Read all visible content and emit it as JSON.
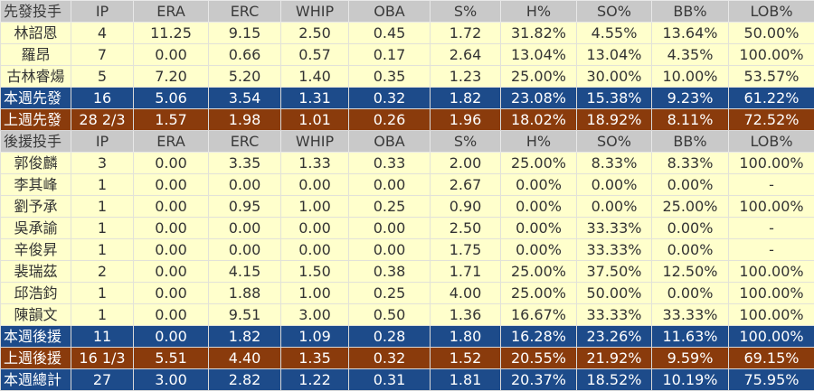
{
  "columns": [
    "IP",
    "ERA",
    "ERC",
    "WHIP",
    "OBA",
    "S%",
    "H%",
    "SO%",
    "BB%",
    "LOB%"
  ],
  "colors": {
    "header": "#c9c9c9",
    "data": "#ffffcc",
    "this_week": "#1d4b8a",
    "last_week": "#8a3b0c"
  },
  "rows": [
    {
      "type": "hdr",
      "cells": [
        "先發投手",
        "IP",
        "ERA",
        "ERC",
        "WHIP",
        "OBA",
        "S%",
        "H%",
        "SO%",
        "BB%",
        "LOB%"
      ]
    },
    {
      "type": "data",
      "cells": [
        "林詔恩",
        "4",
        "11.25",
        "9.15",
        "2.50",
        "0.45",
        "1.72",
        "31.82%",
        "4.55%",
        "13.64%",
        "50.00%"
      ]
    },
    {
      "type": "data",
      "cells": [
        "羅昂",
        "7",
        "0.00",
        "0.66",
        "0.57",
        "0.17",
        "2.64",
        "13.04%",
        "13.04%",
        "4.35%",
        "100.00%"
      ]
    },
    {
      "type": "data",
      "cells": [
        "古林睿煬",
        "5",
        "7.20",
        "5.20",
        "1.40",
        "0.35",
        "1.23",
        "25.00%",
        "30.00%",
        "10.00%",
        "53.57%"
      ]
    },
    {
      "type": "blue",
      "cells": [
        "本週先發",
        "16",
        "5.06",
        "3.54",
        "1.31",
        "0.32",
        "1.82",
        "23.08%",
        "15.38%",
        "9.23%",
        "61.22%"
      ]
    },
    {
      "type": "brown",
      "cells": [
        "上週先發",
        "28 2/3",
        "1.57",
        "1.98",
        "1.01",
        "0.26",
        "1.96",
        "18.02%",
        "18.92%",
        "8.11%",
        "72.52%"
      ]
    },
    {
      "type": "hdr",
      "cells": [
        "後援投手",
        "IP",
        "ERA",
        "ERC",
        "WHIP",
        "OBA",
        "S%",
        "H%",
        "SO%",
        "BB%",
        "LOB%"
      ]
    },
    {
      "type": "data",
      "cells": [
        "郭俊麟",
        "3",
        "0.00",
        "3.35",
        "1.33",
        "0.33",
        "2.00",
        "25.00%",
        "8.33%",
        "8.33%",
        "100.00%"
      ]
    },
    {
      "type": "data",
      "cells": [
        "李其峰",
        "1",
        "0.00",
        "0.00",
        "0.00",
        "0.00",
        "2.67",
        "0.00%",
        "0.00%",
        "0.00%",
        "-"
      ]
    },
    {
      "type": "data",
      "cells": [
        "劉予承",
        "1",
        "0.00",
        "0.95",
        "1.00",
        "0.25",
        "0.90",
        "0.00%",
        "0.00%",
        "25.00%",
        "100.00%"
      ]
    },
    {
      "type": "data",
      "cells": [
        "吳承諭",
        "1",
        "0.00",
        "0.00",
        "0.00",
        "0.00",
        "2.50",
        "0.00%",
        "33.33%",
        "0.00%",
        "-"
      ]
    },
    {
      "type": "data",
      "cells": [
        "辛俊昇",
        "1",
        "0.00",
        "0.00",
        "0.00",
        "0.00",
        "1.75",
        "0.00%",
        "33.33%",
        "0.00%",
        "-"
      ]
    },
    {
      "type": "data",
      "cells": [
        "裴瑞茲",
        "2",
        "0.00",
        "4.15",
        "1.50",
        "0.38",
        "1.71",
        "25.00%",
        "37.50%",
        "12.50%",
        "100.00%"
      ]
    },
    {
      "type": "data",
      "cells": [
        "邱浩鈞",
        "1",
        "0.00",
        "1.88",
        "1.00",
        "0.25",
        "4.00",
        "25.00%",
        "50.00%",
        "0.00%",
        "100.00%"
      ]
    },
    {
      "type": "data",
      "cells": [
        "陳韻文",
        "1",
        "0.00",
        "9.51",
        "3.00",
        "0.50",
        "1.36",
        "16.67%",
        "33.33%",
        "33.33%",
        "100.00%"
      ]
    },
    {
      "type": "blue",
      "cells": [
        "本週後援",
        "11",
        "0.00",
        "1.82",
        "1.09",
        "0.28",
        "1.80",
        "16.28%",
        "23.26%",
        "11.63%",
        "100.00%"
      ]
    },
    {
      "type": "brown",
      "cells": [
        "上週後援",
        "16 1/3",
        "5.51",
        "4.40",
        "1.35",
        "0.32",
        "1.52",
        "20.55%",
        "21.92%",
        "9.59%",
        "69.15%"
      ]
    },
    {
      "type": "blue",
      "cells": [
        "本週總計",
        "27",
        "3.00",
        "2.82",
        "1.22",
        "0.31",
        "1.81",
        "20.37%",
        "18.52%",
        "10.19%",
        "75.95%"
      ]
    }
  ]
}
